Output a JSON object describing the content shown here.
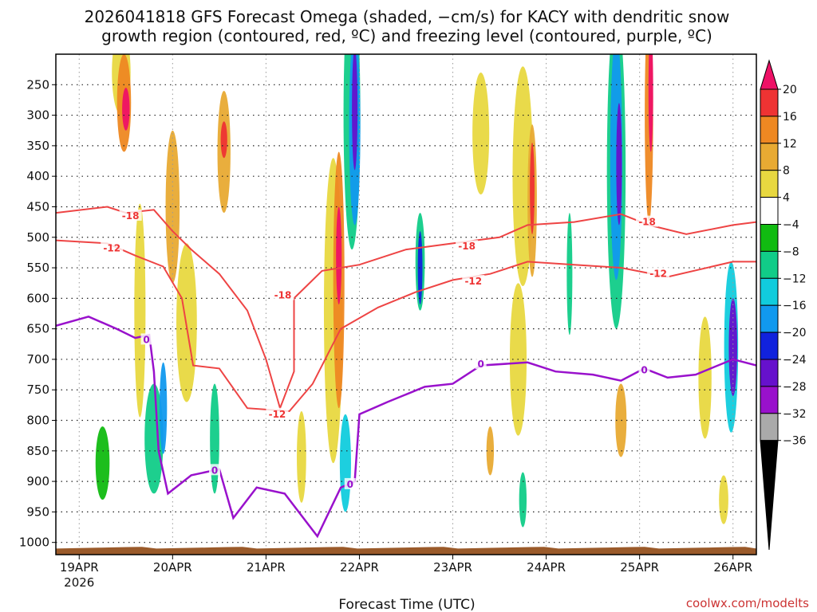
{
  "chart_data": {
    "type": "heatmap",
    "title_lines": [
      "2026041818 GFS Forecast Omega (shaded, −cm/s) for KACY with dendritic snow",
      "growth region (contoured, red, ºC) and freezing level (contoured, purple, ºC)"
    ],
    "xlabel": "Forecast Time (UTC)",
    "credit": "coolwx.com/modelts",
    "x_range_days": [
      -0.25,
      7.25
    ],
    "x_ticks": [
      {
        "day": 0,
        "label": "19APR",
        "sub": "2026"
      },
      {
        "day": 1,
        "label": "20APR"
      },
      {
        "day": 2,
        "label": "21APR"
      },
      {
        "day": 3,
        "label": "22APR"
      },
      {
        "day": 4,
        "label": "23APR"
      },
      {
        "day": 5,
        "label": "24APR"
      },
      {
        "day": 6,
        "label": "25APR"
      },
      {
        "day": 7,
        "label": "26APR"
      }
    ],
    "y_range_hpa": [
      200,
      1020
    ],
    "y_ticks": [
      250,
      300,
      350,
      400,
      450,
      500,
      550,
      600,
      650,
      700,
      750,
      800,
      850,
      900,
      950,
      1000
    ],
    "colorbar": {
      "labels": [
        "20",
        "16",
        "12",
        "8",
        "4",
        "−4",
        "−8",
        "−12",
        "−16",
        "−20",
        "−24",
        "−28",
        "−32",
        "−36"
      ],
      "colors": [
        "#ee1166",
        "#ee3333",
        "#ee8822",
        "#e8aa33",
        "#e8d840",
        "#ffffff",
        "#11bb11",
        "#11cc88",
        "#11ccdd",
        "#1199ee",
        "#1122dd",
        "#6611cc",
        "#9911cc",
        "#aaaaaa",
        "#000000"
      ]
    },
    "omega_blobs": [
      {
        "day": 0.5,
        "p": 290,
        "w": 0.08,
        "h": 70,
        "v": 20
      },
      {
        "day": 0.48,
        "p": 280,
        "w": 0.15,
        "h": 160,
        "v": 12
      },
      {
        "day": 0.45,
        "p": 230,
        "w": 0.2,
        "h": 140,
        "v": 6
      },
      {
        "day": 1.55,
        "p": 340,
        "w": 0.07,
        "h": 60,
        "v": 18
      },
      {
        "day": 1.55,
        "p": 360,
        "w": 0.14,
        "h": 200,
        "v": 10
      },
      {
        "day": 1.0,
        "p": 450,
        "w": 0.15,
        "h": 250,
        "v": 9
      },
      {
        "day": 0.65,
        "p": 620,
        "w": 0.12,
        "h": 350,
        "v": 6
      },
      {
        "day": 1.15,
        "p": 640,
        "w": 0.22,
        "h": 260,
        "v": 6
      },
      {
        "day": 0.9,
        "p": 780,
        "w": 0.08,
        "h": 150,
        "v": -18
      },
      {
        "day": 0.8,
        "p": 830,
        "w": 0.2,
        "h": 180,
        "v": -8
      },
      {
        "day": 1.45,
        "p": 830,
        "w": 0.1,
        "h": 180,
        "v": -8
      },
      {
        "day": 0.25,
        "p": 870,
        "w": 0.15,
        "h": 120,
        "v": -6
      },
      {
        "day": 2.78,
        "p": 530,
        "w": 0.06,
        "h": 160,
        "v": 22
      },
      {
        "day": 2.78,
        "p": 570,
        "w": 0.12,
        "h": 420,
        "v": 12
      },
      {
        "day": 2.72,
        "p": 620,
        "w": 0.2,
        "h": 500,
        "v": 6
      },
      {
        "day": 2.95,
        "p": 290,
        "w": 0.06,
        "h": 200,
        "v": -24
      },
      {
        "day": 2.95,
        "p": 320,
        "w": 0.12,
        "h": 320,
        "v": -18
      },
      {
        "day": 2.92,
        "p": 300,
        "w": 0.18,
        "h": 440,
        "v": -10
      },
      {
        "day": 2.85,
        "p": 870,
        "w": 0.12,
        "h": 160,
        "v": -14
      },
      {
        "day": 2.38,
        "p": 860,
        "w": 0.1,
        "h": 150,
        "v": 6
      },
      {
        "day": 3.65,
        "p": 550,
        "w": 0.05,
        "h": 120,
        "v": -20
      },
      {
        "day": 3.65,
        "p": 540,
        "w": 0.1,
        "h": 160,
        "v": -10
      },
      {
        "day": 4.3,
        "p": 330,
        "w": 0.18,
        "h": 200,
        "v": 6
      },
      {
        "day": 4.75,
        "p": 400,
        "w": 0.22,
        "h": 360,
        "v": 5
      },
      {
        "day": 4.85,
        "p": 420,
        "w": 0.05,
        "h": 150,
        "v": 16
      },
      {
        "day": 4.85,
        "p": 440,
        "w": 0.1,
        "h": 250,
        "v": 10
      },
      {
        "day": 4.7,
        "p": 700,
        "w": 0.18,
        "h": 250,
        "v": 5
      },
      {
        "day": 4.75,
        "p": 930,
        "w": 0.08,
        "h": 90,
        "v": -10
      },
      {
        "day": 5.78,
        "p": 380,
        "w": 0.06,
        "h": 200,
        "v": -26
      },
      {
        "day": 5.75,
        "p": 370,
        "w": 0.13,
        "h": 400,
        "v": -18
      },
      {
        "day": 5.75,
        "p": 390,
        "w": 0.2,
        "h": 520,
        "v": -10
      },
      {
        "day": 6.12,
        "p": 260,
        "w": 0.05,
        "h": 200,
        "v": 20
      },
      {
        "day": 6.1,
        "p": 300,
        "w": 0.09,
        "h": 350,
        "v": 12
      },
      {
        "day": 5.8,
        "p": 800,
        "w": 0.12,
        "h": 120,
        "v": 10
      },
      {
        "day": 7.0,
        "p": 680,
        "w": 0.09,
        "h": 160,
        "v": -24
      },
      {
        "day": 6.98,
        "p": 680,
        "w": 0.15,
        "h": 280,
        "v": -14
      },
      {
        "day": 6.7,
        "p": 730,
        "w": 0.14,
        "h": 200,
        "v": 6
      },
      {
        "day": 6.9,
        "p": 930,
        "w": 0.1,
        "h": 80,
        "v": 6
      },
      {
        "day": 5.25,
        "p": 560,
        "w": 0.06,
        "h": 200,
        "v": -10
      },
      {
        "day": 4.4,
        "p": 850,
        "w": 0.08,
        "h": 80,
        "v": 8
      }
    ],
    "terrain_p_hpa": 1010,
    "red_contours": [
      {
        "label": "-18",
        "points": [
          [
            -0.25,
            460
          ],
          [
            0.3,
            450
          ],
          [
            0.5,
            460
          ],
          [
            0.8,
            455
          ],
          [
            1.0,
            490
          ],
          [
            1.2,
            520
          ],
          [
            1.5,
            560
          ],
          [
            1.8,
            620
          ],
          [
            2.0,
            700
          ],
          [
            2.15,
            780
          ],
          [
            2.3,
            720
          ],
          [
            2.3,
            600
          ],
          [
            2.6,
            555
          ],
          [
            3.0,
            545
          ],
          [
            3.5,
            520
          ],
          [
            4.0,
            510
          ],
          [
            4.5,
            500
          ],
          [
            4.8,
            480
          ],
          [
            5.3,
            475
          ],
          [
            5.8,
            462
          ],
          [
            6.1,
            480
          ],
          [
            6.5,
            495
          ],
          [
            7.0,
            480
          ],
          [
            7.25,
            475
          ]
        ],
        "label_at": [
          [
            0.55,
            465
          ],
          [
            2.18,
            595
          ],
          [
            4.15,
            515
          ],
          [
            6.08,
            475
          ]
        ]
      },
      {
        "label": "-12",
        "points": [
          [
            -0.25,
            505
          ],
          [
            0.3,
            510
          ],
          [
            0.6,
            530
          ],
          [
            0.9,
            548
          ],
          [
            1.1,
            600
          ],
          [
            1.22,
            710
          ],
          [
            1.5,
            715
          ],
          [
            1.8,
            780
          ],
          [
            2.25,
            785
          ],
          [
            2.5,
            740
          ],
          [
            2.8,
            650
          ],
          [
            3.2,
            615
          ],
          [
            3.6,
            590
          ],
          [
            4.0,
            570
          ],
          [
            4.4,
            560
          ],
          [
            4.8,
            540
          ],
          [
            5.3,
            545
          ],
          [
            5.8,
            550
          ],
          [
            6.3,
            565
          ],
          [
            7.0,
            540
          ],
          [
            7.25,
            540
          ]
        ],
        "label_at": [
          [
            0.35,
            518
          ],
          [
            2.12,
            790
          ],
          [
            4.22,
            572
          ],
          [
            6.2,
            560
          ]
        ]
      }
    ],
    "purple_contour": {
      "label": "0",
      "points": [
        [
          -0.25,
          645
        ],
        [
          0.1,
          630
        ],
        [
          0.4,
          650
        ],
        [
          0.6,
          665
        ],
        [
          0.75,
          660
        ],
        [
          0.8,
          720
        ],
        [
          0.85,
          850
        ],
        [
          0.95,
          920
        ],
        [
          1.2,
          890
        ],
        [
          1.5,
          880
        ],
        [
          1.65,
          960
        ],
        [
          1.9,
          910
        ],
        [
          2.2,
          920
        ],
        [
          2.4,
          960
        ],
        [
          2.55,
          990
        ],
        [
          2.8,
          910
        ],
        [
          2.95,
          900
        ],
        [
          3.0,
          790
        ],
        [
          3.3,
          770
        ],
        [
          3.7,
          745
        ],
        [
          4.0,
          740
        ],
        [
          4.3,
          710
        ],
        [
          4.8,
          705
        ],
        [
          5.1,
          720
        ],
        [
          5.5,
          725
        ],
        [
          5.8,
          735
        ],
        [
          6.05,
          715
        ],
        [
          6.3,
          730
        ],
        [
          6.6,
          725
        ],
        [
          7.0,
          700
        ],
        [
          7.25,
          710
        ]
      ],
      "label_at": [
        [
          0.72,
          668
        ],
        [
          1.45,
          882
        ],
        [
          2.9,
          905
        ],
        [
          4.3,
          708
        ],
        [
          6.05,
          718
        ]
      ]
    }
  }
}
